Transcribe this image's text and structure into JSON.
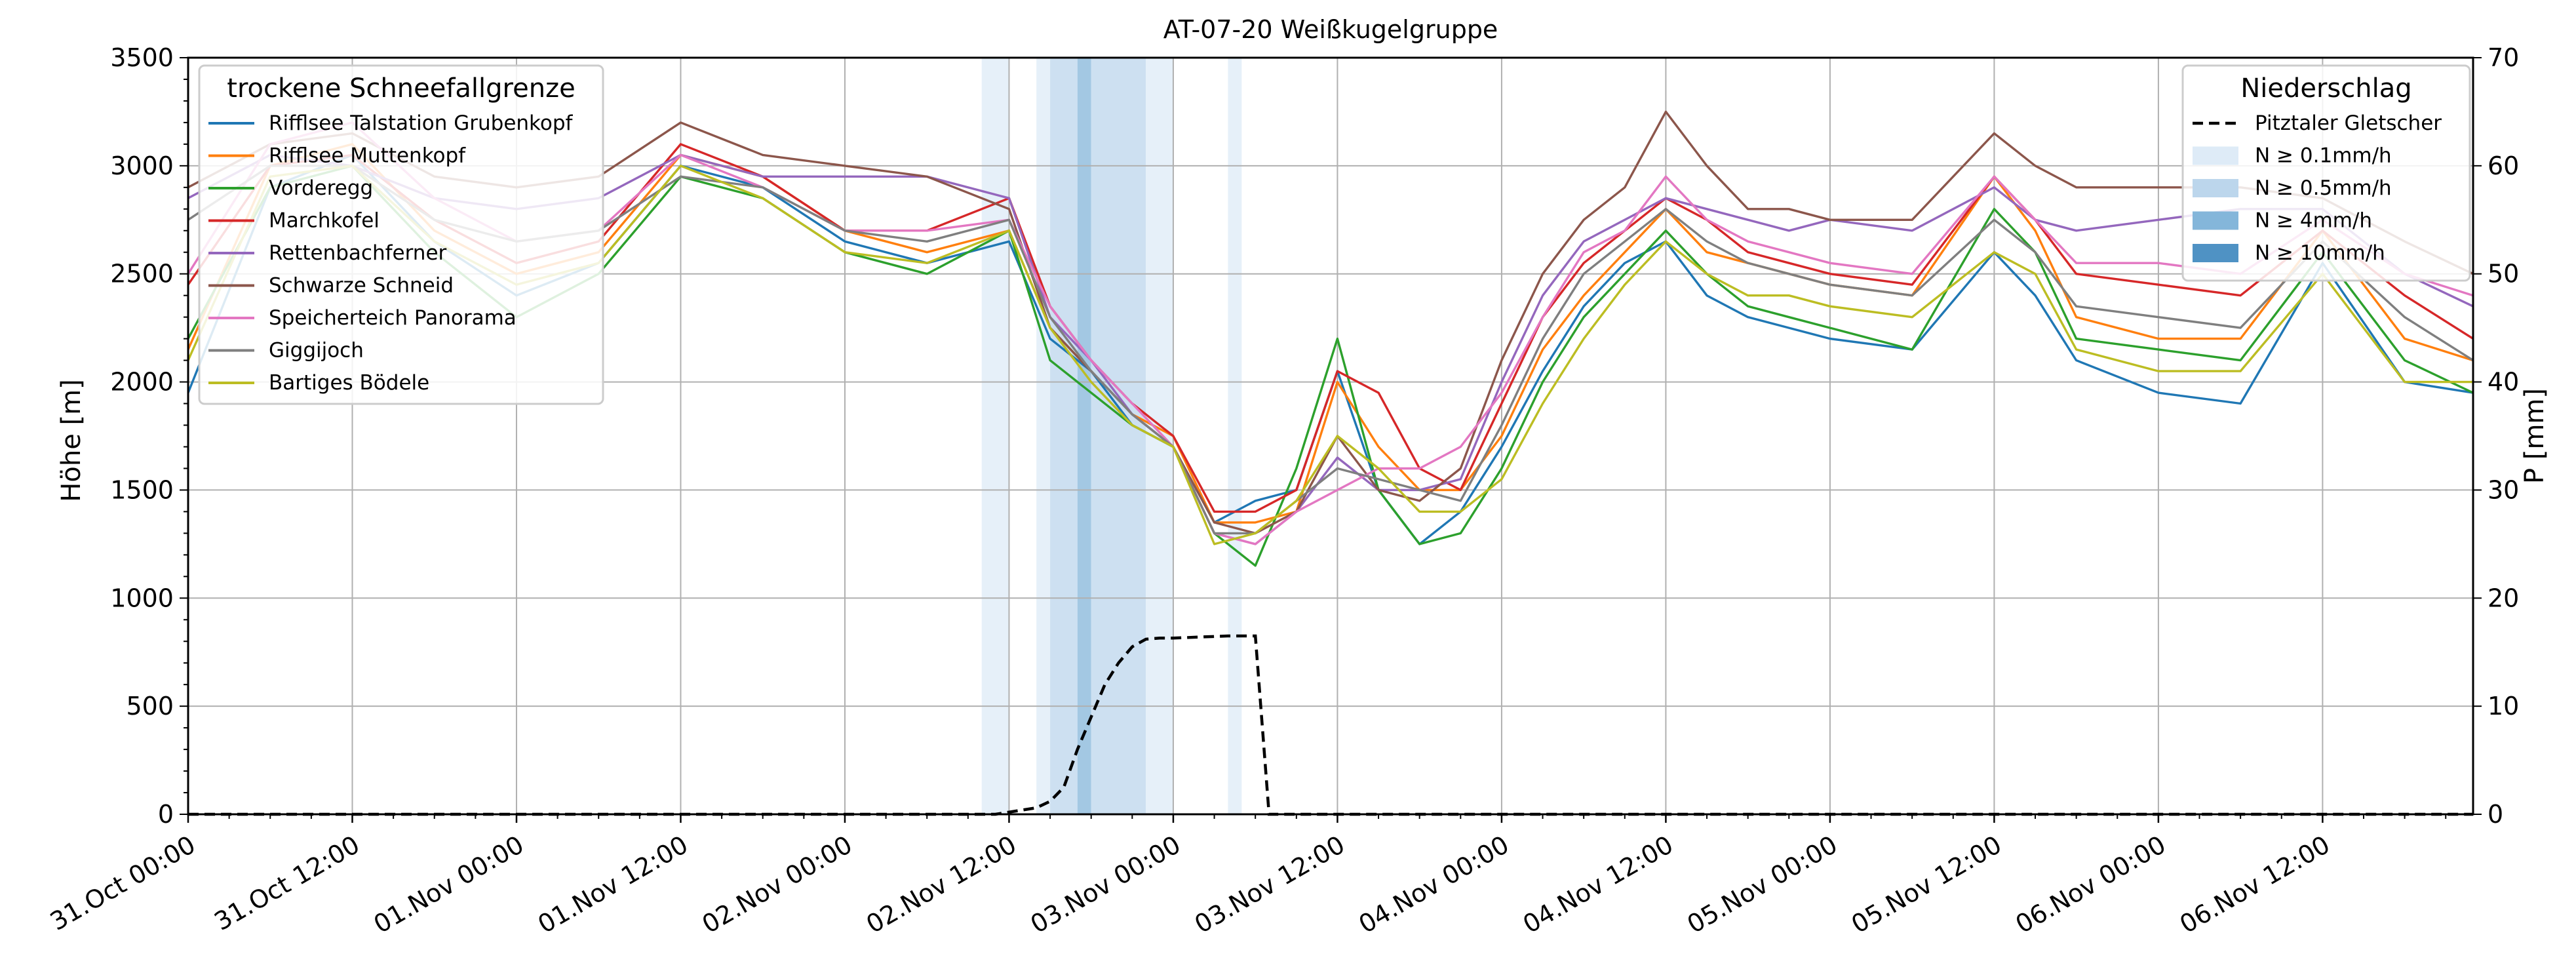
{
  "chart_data": {
    "type": "line",
    "title": "AT-07-20 Weißkugelgruppe",
    "ylabel": "Höhe [m]",
    "y2label": "P [mm]",
    "ylim": [
      0,
      3500
    ],
    "y2lim": [
      0,
      70
    ],
    "xlim_hours": [
      0,
      167
    ],
    "grid": true,
    "x_ticks": [
      {
        "h": 0,
        "label": "31.Oct 00:00"
      },
      {
        "h": 12,
        "label": "31.Oct 12:00"
      },
      {
        "h": 24,
        "label": "01.Nov 00:00"
      },
      {
        "h": 36,
        "label": "01.Nov 12:00"
      },
      {
        "h": 48,
        "label": "02.Nov 00:00"
      },
      {
        "h": 60,
        "label": "02.Nov 12:00"
      },
      {
        "h": 72,
        "label": "03.Nov 00:00"
      },
      {
        "h": 84,
        "label": "03.Nov 12:00"
      },
      {
        "h": 96,
        "label": "04.Nov 00:00"
      },
      {
        "h": 108,
        "label": "04.Nov 12:00"
      },
      {
        "h": 120,
        "label": "05.Nov 00:00"
      },
      {
        "h": 132,
        "label": "05.Nov 12:00"
      },
      {
        "h": 144,
        "label": "06.Nov 00:00"
      },
      {
        "h": 156,
        "label": "06.Nov 12:00"
      }
    ],
    "y_ticks": [
      "0",
      "500",
      "1000",
      "1500",
      "2000",
      "2500",
      "3000",
      "3500"
    ],
    "y2_ticks": [
      "0",
      "10",
      "20",
      "30",
      "40",
      "50",
      "60",
      "70"
    ],
    "legend_left": {
      "title": "trockene Schneefallgrenze",
      "placement": "top-left"
    },
    "legend_right": {
      "title": "Niederschlag",
      "placement": "top-right",
      "entries": [
        {
          "label": "Pitztaler Gletscher",
          "style": "dashed",
          "color": "#000000"
        },
        {
          "label": "N ≥ 0.1mm/h",
          "color": "#deebf7"
        },
        {
          "label": "N ≥ 0.5mm/h",
          "color": "#bcd6ec"
        },
        {
          "label": "N ≥ 4mm/h",
          "color": "#84b6da"
        },
        {
          "label": "N ≥ 10mm/h",
          "color": "#4f92c4"
        }
      ]
    },
    "precip_bands": [
      {
        "from": 58,
        "to": 60,
        "level": 1
      },
      {
        "from": 62,
        "to": 63,
        "level": 1
      },
      {
        "from": 63,
        "to": 65,
        "level": 2
      },
      {
        "from": 65,
        "to": 66,
        "level": 3
      },
      {
        "from": 66,
        "to": 70,
        "level": 2
      },
      {
        "from": 70,
        "to": 72,
        "level": 1
      },
      {
        "from": 76,
        "to": 77,
        "level": 1
      }
    ],
    "precip_series": {
      "name": "Pitztaler Gletscher",
      "x": [
        0,
        59,
        60,
        62,
        63,
        64,
        65,
        66,
        67,
        68,
        69,
        70,
        71,
        72,
        74,
        76,
        78,
        79,
        80,
        167
      ],
      "values": [
        0,
        0,
        0.2,
        0.6,
        1.2,
        2.5,
        6,
        9,
        12,
        14,
        15.5,
        16.2,
        16.3,
        16.3,
        16.4,
        16.5,
        16.5,
        0,
        0,
        0
      ]
    },
    "series_x_hours": [
      0,
      6,
      12,
      18,
      24,
      30,
      36,
      42,
      48,
      54,
      60,
      63,
      66,
      69,
      72,
      75,
      78,
      81,
      84,
      87,
      90,
      93,
      96,
      99,
      102,
      105,
      108,
      111,
      114,
      117,
      120,
      126,
      132,
      135,
      138,
      144,
      150,
      156,
      162,
      167
    ],
    "series": [
      {
        "name": "Rifflsee Talstation Grubenkopf",
        "color": "#1f77b4",
        "values": [
          1950,
          2900,
          3050,
          2650,
          2400,
          2550,
          3000,
          2900,
          2650,
          2550,
          2650,
          2200,
          2050,
          1800,
          1700,
          1350,
          1450,
          1500,
          2050,
          1500,
          1250,
          1400,
          1700,
          2050,
          2350,
          2550,
          2650,
          2400,
          2300,
          2250,
          2200,
          2150,
          2600,
          2400,
          2100,
          1950,
          1900,
          2550,
          2000,
          1950
        ]
      },
      {
        "name": "Rifflsee Muttenkopf",
        "color": "#ff7f0e",
        "values": [
          2150,
          3000,
          3100,
          2700,
          2500,
          2600,
          3050,
          2950,
          2700,
          2600,
          2700,
          2250,
          2050,
          1850,
          1750,
          1350,
          1350,
          1400,
          2000,
          1700,
          1500,
          1500,
          1750,
          2150,
          2400,
          2600,
          2800,
          2600,
          2550,
          2500,
          2450,
          2400,
          2950,
          2700,
          2300,
          2200,
          2200,
          2700,
          2200,
          2100
        ]
      },
      {
        "name": "Vorderegg",
        "color": "#2ca02c",
        "values": [
          2200,
          2900,
          3000,
          2600,
          2300,
          2500,
          2950,
          2850,
          2600,
          2500,
          2700,
          2100,
          1950,
          1800,
          1700,
          1300,
          1150,
          1600,
          2200,
          1500,
          1250,
          1300,
          1600,
          2000,
          2300,
          2500,
          2700,
          2500,
          2350,
          2300,
          2250,
          2150,
          2800,
          2600,
          2200,
          2150,
          2100,
          2600,
          2100,
          1950
        ]
      },
      {
        "name": "Marchkofel",
        "color": "#d62728",
        "values": [
          2450,
          3000,
          3050,
          2750,
          2550,
          2650,
          3100,
          2950,
          2700,
          2700,
          2850,
          2350,
          2100,
          1900,
          1750,
          1400,
          1400,
          1500,
          2050,
          1950,
          1600,
          1500,
          1900,
          2300,
          2550,
          2700,
          2850,
          2750,
          2600,
          2550,
          2500,
          2450,
          2950,
          2750,
          2500,
          2450,
          2400,
          2700,
          2400,
          2200
        ]
      },
      {
        "name": "Rettenbachferner",
        "color": "#9467bd",
        "values": [
          2850,
          3050,
          3000,
          2850,
          2800,
          2850,
          3050,
          2950,
          2950,
          2950,
          2850,
          2300,
          2100,
          1850,
          1700,
          1300,
          1250,
          1400,
          1650,
          1500,
          1500,
          1550,
          2000,
          2400,
          2650,
          2750,
          2850,
          2800,
          2750,
          2700,
          2750,
          2700,
          2900,
          2750,
          2700,
          2750,
          2800,
          2800,
          2500,
          2350
        ]
      },
      {
        "name": "Schwarze Schneid",
        "color": "#8c564b",
        "values": [
          2900,
          3100,
          3150,
          2950,
          2900,
          2950,
          3200,
          3050,
          3000,
          2950,
          2800,
          2250,
          2050,
          1850,
          1700,
          1350,
          1300,
          1400,
          1750,
          1500,
          1450,
          1600,
          2100,
          2500,
          2750,
          2900,
          3250,
          3000,
          2800,
          2800,
          2750,
          2750,
          3150,
          3000,
          2900,
          2900,
          2900,
          2850,
          2650,
          2500
        ]
      },
      {
        "name": "Speicherteich Panorama",
        "color": "#e377c2",
        "values": [
          2500,
          3100,
          3200,
          2850,
          2650,
          2700,
          3050,
          2900,
          2700,
          2700,
          2750,
          2350,
          2100,
          1900,
          1700,
          1300,
          1250,
          1400,
          1500,
          1600,
          1600,
          1700,
          1950,
          2300,
          2600,
          2700,
          2950,
          2750,
          2650,
          2600,
          2550,
          2500,
          2950,
          2750,
          2550,
          2550,
          2500,
          2750,
          2500,
          2400
        ]
      },
      {
        "name": "Giggijoch",
        "color": "#7f7f7f",
        "values": [
          2750,
          3000,
          3000,
          2750,
          2650,
          2700,
          2950,
          2900,
          2700,
          2650,
          2750,
          2300,
          2050,
          1850,
          1700,
          1300,
          1300,
          1450,
          1600,
          1550,
          1500,
          1450,
          1800,
          2200,
          2500,
          2650,
          2800,
          2650,
          2550,
          2500,
          2450,
          2400,
          2750,
          2600,
          2350,
          2300,
          2250,
          2650,
          2300,
          2100
        ]
      },
      {
        "name": "Bartiges Bödele",
        "color": "#bcbd22",
        "values": [
          2100,
          2950,
          3000,
          2650,
          2450,
          2550,
          3000,
          2850,
          2600,
          2550,
          2700,
          2250,
          2000,
          1800,
          1700,
          1250,
          1300,
          1450,
          1750,
          1600,
          1400,
          1400,
          1550,
          1900,
          2200,
          2450,
          2650,
          2500,
          2400,
          2400,
          2350,
          2300,
          2600,
          2500,
          2150,
          2050,
          2050,
          2500,
          2000,
          2000
        ]
      }
    ]
  }
}
